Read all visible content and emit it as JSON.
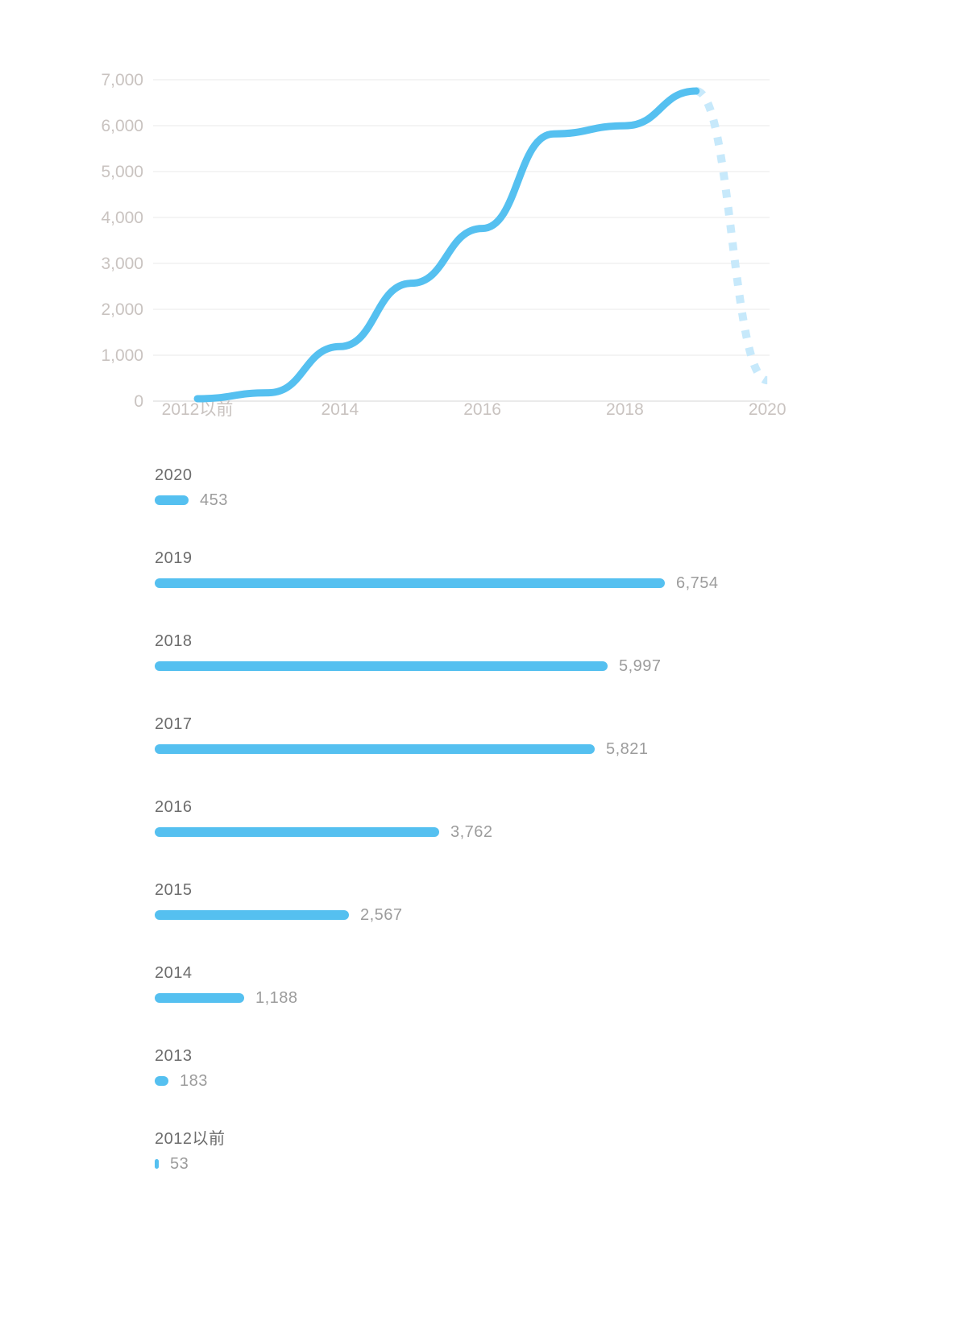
{
  "page": {
    "background": "#ffffff"
  },
  "chart_data": [
    {
      "type": "line",
      "title": "",
      "xlabel": "",
      "ylabel": "",
      "x": [
        "2012以前",
        "2013",
        "2014",
        "2015",
        "2016",
        "2017",
        "2018",
        "2019",
        "2020"
      ],
      "values": [
        53,
        183,
        1188,
        2567,
        3762,
        5821,
        5997,
        6754,
        453
      ],
      "solid_segment_end_x": "2019",
      "dashed_segment_x": [
        "2019",
        "2020"
      ],
      "x_tick_labels": [
        "2012以前",
        "2014",
        "2016",
        "2018",
        "2020"
      ],
      "x_tick_indices": [
        0,
        2,
        4,
        6,
        8
      ],
      "y_tick_labels": [
        "7,000",
        "6,000",
        "5,000",
        "4,000",
        "3,000",
        "2,000",
        "1,000",
        "0"
      ],
      "ylim": [
        0,
        7000
      ],
      "y_tick_step": 1000,
      "grid": true,
      "legend": false,
      "colors": {
        "line": "#55c0f0",
        "dashed_line": "#c7e9fb",
        "grid": "#f0f0f0",
        "zero_line": "#e4e4e4",
        "axis_text": "#c9c3c0"
      }
    },
    {
      "type": "bar",
      "orientation": "horizontal",
      "categories": [
        "2020",
        "2019",
        "2018",
        "2017",
        "2016",
        "2015",
        "2014",
        "2013",
        "2012以前"
      ],
      "values": [
        453,
        6754,
        5997,
        5821,
        3762,
        2567,
        1188,
        183,
        53
      ],
      "value_labels": [
        "453",
        "6,754",
        "5,997",
        "5,821",
        "3,762",
        "2,567",
        "1,188",
        "183",
        "53"
      ],
      "max_scale_value": 6754,
      "legend": false,
      "colors": {
        "bar": "#55c0f0",
        "category_text": "#6d6d6d",
        "value_text": "#9c9c9c"
      }
    }
  ]
}
